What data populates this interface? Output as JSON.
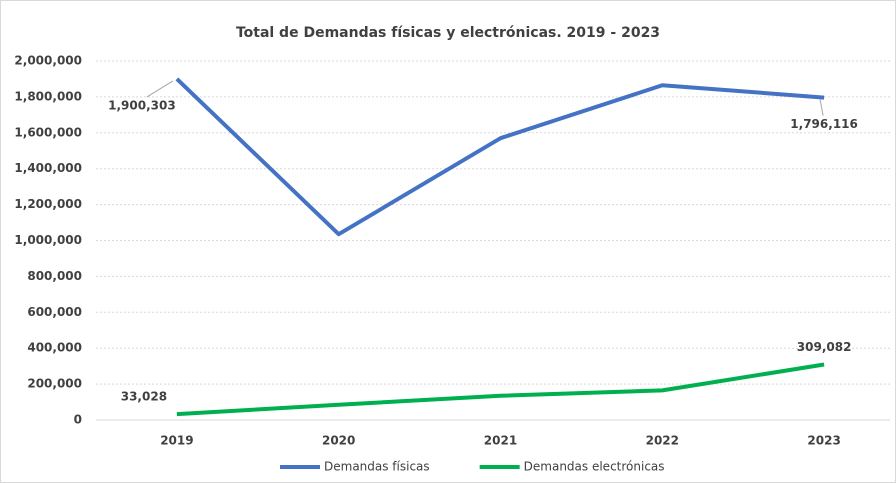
{
  "chart_data": {
    "type": "line",
    "title": "Total de Demandas físicas y electrónicas. 2019 - 2023",
    "categories": [
      "2019",
      "2020",
      "2021",
      "2022",
      "2023"
    ],
    "series": [
      {
        "name": "Demandas físicas",
        "color": "#4472c4",
        "values": [
          1900303,
          1035000,
          1570000,
          1865000,
          1796116
        ],
        "value_labels": [
          "1,900,303",
          null,
          null,
          null,
          "1,796,116"
        ]
      },
      {
        "name": "Demandas electrónicas",
        "color": "#00b050",
        "values": [
          33028,
          85000,
          135000,
          165000,
          309082
        ],
        "value_labels": [
          "33,028",
          null,
          null,
          null,
          "309,082"
        ]
      }
    ],
    "ylim": [
      0,
      2000000
    ],
    "yticks": [
      0,
      {
        "value": 200000,
        "label": "200,000"
      },
      {
        "value": 400000,
        "label": "400,000"
      },
      {
        "value": 600000,
        "label": "600,000"
      },
      {
        "value": 800000,
        "label": "800,000"
      },
      {
        "value": 1000000,
        "label": "1,000,000"
      },
      {
        "value": 1200000,
        "label": "1,200,000"
      },
      {
        "value": 1400000,
        "label": "1,400,000"
      },
      {
        "value": 1600000,
        "label": "1,600,000"
      },
      {
        "value": 1800000,
        "label": "1,800,000"
      },
      {
        "value": 2000000,
        "label": "2,000,000"
      }
    ],
    "grid": true,
    "legend": "bottom"
  }
}
